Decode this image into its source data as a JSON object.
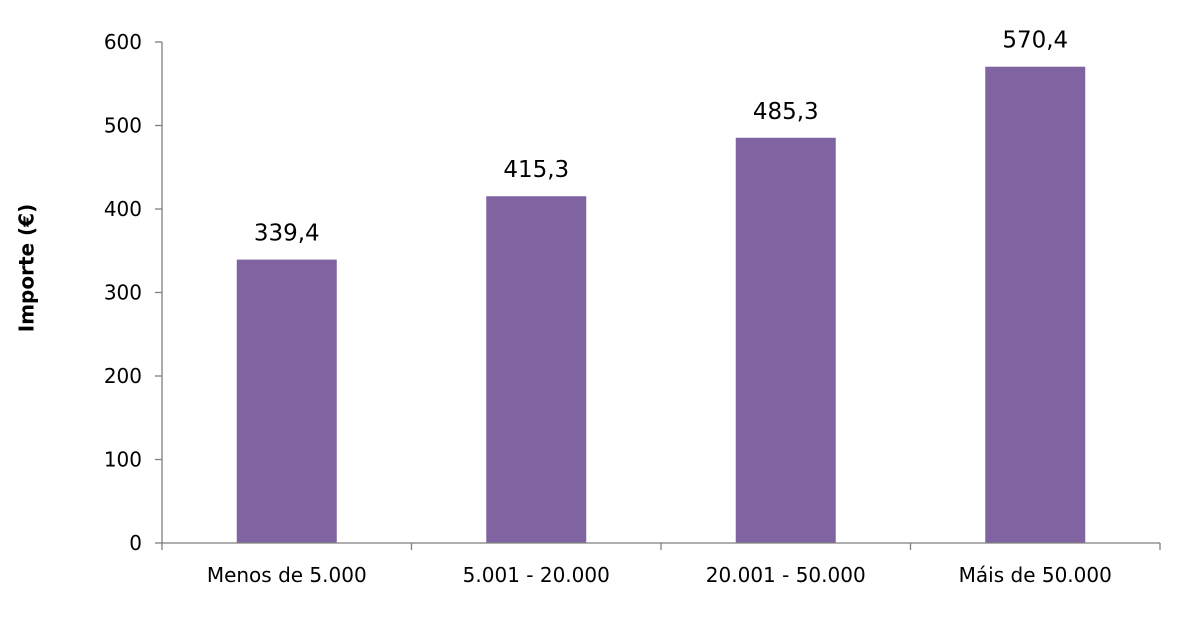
{
  "chart_data": {
    "type": "bar",
    "title": "",
    "xlabel": "",
    "ylabel": "Importe (€)",
    "categories": [
      "Menos de 5.000",
      "5.001 - 20.000",
      "20.001 - 50.000",
      "Máis de 50.000"
    ],
    "values": [
      339.4,
      415.3,
      485.3,
      570.4
    ],
    "value_labels": [
      "339,4",
      "415,3",
      "485,3",
      "570,4"
    ],
    "ylim": [
      0,
      600
    ],
    "yticks": [
      0,
      100,
      200,
      300,
      400,
      500,
      600
    ],
    "grid": false,
    "legend": "none",
    "bar_color": "#8064a2"
  }
}
